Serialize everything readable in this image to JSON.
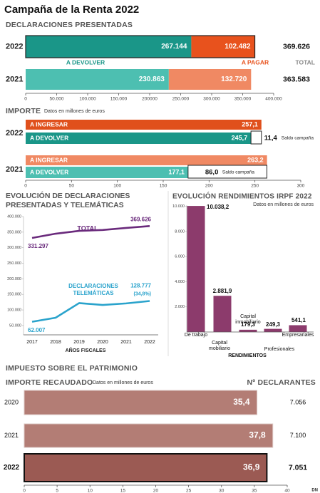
{
  "title": "Campaña de la Renta 2022",
  "section_title": "IMPUESTO SOBRE EL PATRIMONIO",
  "source": "DN",
  "chart_data": [
    {
      "type": "stacked-bar-h",
      "title": "DECLARACIONES PRESENTADAS",
      "categories": [
        "2022",
        "2021"
      ],
      "series": [
        {
          "name": "A DEVOLVER",
          "color": "#1a9688",
          "colors": [
            "#1a9688",
            "#4dbfb1"
          ],
          "values": [
            267144,
            230863
          ],
          "value_labels": [
            "267.144",
            "230.863"
          ]
        },
        {
          "name": "A PAGAR",
          "color": "#e8521d",
          "colors": [
            "#e8521d",
            "#f08963"
          ],
          "values": [
            102482,
            132720
          ],
          "value_labels": [
            "102.482",
            "132.720"
          ]
        }
      ],
      "totals": {
        "name": "TOTAL",
        "values": [
          369626,
          363583
        ],
        "value_labels": [
          "369.626",
          "363.583"
        ]
      },
      "xlim": [
        0,
        400000
      ],
      "xticks": [
        0,
        {
          "value": 50000,
          "label": "50.000"
        },
        {
          "value": 100000,
          "label": "100.000"
        },
        {
          "value": 150000,
          "label": "150.000"
        },
        200000,
        {
          "value": 250000,
          "label": "250.000"
        },
        {
          "value": 300000,
          "label": "300.000"
        },
        {
          "value": 350000,
          "label": "350.000"
        },
        {
          "value": 400000,
          "label": "400.000"
        }
      ]
    },
    {
      "type": "grouped-bar-h",
      "title": "IMPORTE",
      "subtitle": "Datos en millones de euros",
      "categories": [
        "2022",
        "2021"
      ],
      "series": [
        {
          "name": "A INGRESAR",
          "colors": [
            "#e0501c",
            "#f08963"
          ],
          "values": [
            257.1,
            263.2
          ],
          "value_labels": [
            "257,1",
            "263,2"
          ]
        },
        {
          "name": "A DEVOLVER",
          "colors": [
            "#1a9688",
            "#4dbfb1"
          ],
          "values": [
            245.7,
            177.1
          ],
          "value_labels": [
            "245,7",
            "177,1"
          ]
        }
      ],
      "saldo": {
        "name": "Saldo campaña",
        "values": [
          11.4,
          86.0
        ],
        "value_labels": [
          "11,4",
          "86,0"
        ]
      },
      "xlim": [
        0,
        300
      ],
      "xticks": [
        0,
        50,
        100,
        150,
        200,
        250,
        300
      ]
    },
    {
      "type": "line",
      "title": "EVOLUCIÓN DE DECLARACIONES PRESENTADAS Y TELEMÁTICAS",
      "x": [
        2017,
        2018,
        2019,
        2020,
        2021,
        2022
      ],
      "xlabel": "AÑOS FISCALES",
      "series": [
        {
          "name": "TOTAL",
          "color": "#6a2a7c",
          "values": [
            331297,
            345000,
            354000,
            357000,
            363583,
            369626
          ],
          "value_labels": [
            "331.297",
            null,
            null,
            null,
            null,
            "369.626"
          ]
        },
        {
          "name": "DECLARACIONES TELEMÁTICAS",
          "color": "#2aa3cc",
          "values": [
            62007,
            75000,
            122000,
            116000,
            121000,
            128777
          ],
          "value_labels": [
            "62.007",
            null,
            null,
            null,
            null,
            "128.777"
          ],
          "annotation": "(34,8%)"
        }
      ],
      "ylim": [
        20000,
        400000
      ],
      "yticks": [
        {
          "value": 50000,
          "label": "50.000"
        },
        {
          "value": 100000,
          "label": "100.000"
        },
        {
          "value": 150000,
          "label": "150.000"
        },
        {
          "value": 200000,
          "label": "200.000"
        },
        {
          "value": 250000,
          "label": "250.000"
        },
        {
          "value": 300000,
          "label": "300.000"
        },
        {
          "value": 350000,
          "label": "350.000"
        },
        {
          "value": 400000,
          "label": "400.000"
        }
      ]
    },
    {
      "type": "bar",
      "title": "EVOLUCIÓN RENDIMIENTOS IRPF 2022",
      "subtitle": "Datos en millones de euros",
      "categories": [
        "De trabajo",
        "Capital mobiliario",
        "Capital inmobiliario",
        "Profesionales",
        "Empresariales"
      ],
      "values": [
        10038.2,
        2881.9,
        179.3,
        249.3,
        541.1
      ],
      "value_labels": [
        "10.038,2",
        "2.881,9",
        "179,3",
        "249,3",
        "541,1"
      ],
      "color": "#8c3b6c",
      "xlabel": "RENDIMIENTOS",
      "ylim": [
        0,
        10100
      ],
      "yticks": [
        {
          "value": 2000,
          "label": "2.000"
        },
        {
          "value": 4000,
          "label": "4.000"
        },
        {
          "value": 6000,
          "label": "6.000"
        },
        {
          "value": 8000,
          "label": "8.000"
        },
        {
          "value": 10000,
          "label": "10.000"
        }
      ]
    },
    {
      "type": "bar-h",
      "title": "IMPORTE RECAUDADO",
      "subtitle": "Datos en millones de euros",
      "categories": [
        "2020",
        "2021",
        "2022"
      ],
      "values": [
        35.4,
        37.8,
        36.9
      ],
      "value_labels": [
        "35,4",
        "37,8",
        "36,9"
      ],
      "colors": [
        "#b37d75",
        "#b37d75",
        "#9b5a53"
      ],
      "declarants": {
        "name": "Nº DECLARANTES",
        "values": [
          "7.056",
          "7.100",
          "7.051"
        ]
      },
      "xlim": [
        0,
        40
      ],
      "xticks": [
        0,
        5,
        10,
        15,
        20,
        25,
        30,
        35,
        40
      ]
    }
  ]
}
